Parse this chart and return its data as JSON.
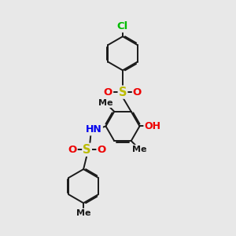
{
  "bg_color": "#e8e8e8",
  "bond_color": "#1a1a1a",
  "cl_color": "#00bb00",
  "o_color": "#ee0000",
  "s_color": "#bbbb00",
  "n_color": "#0000ee",
  "h_color": "#666666",
  "line_width": 1.4,
  "font_size": 9.5,
  "dbo": 0.055,
  "ring_r": 0.72,
  "figsize": [
    3.0,
    3.0
  ],
  "dpi": 100,
  "xlim": [
    0,
    10
  ],
  "ylim": [
    0,
    10
  ]
}
